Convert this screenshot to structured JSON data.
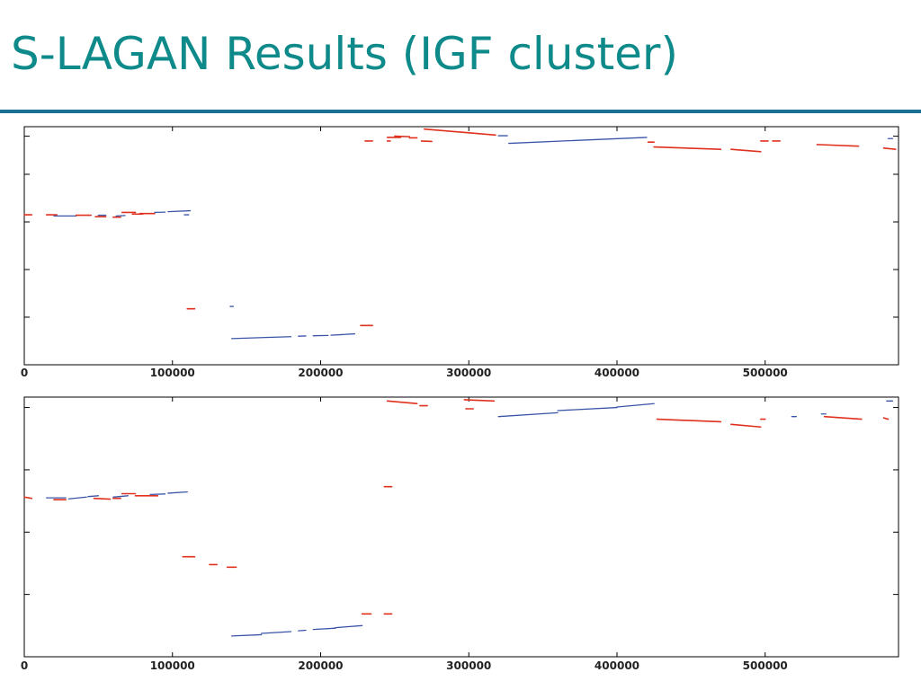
{
  "title": "S-LAGAN Results (IGF cluster)",
  "colors": {
    "title": "#0f8a8a",
    "rule": "#1b6f93",
    "forward": "#e0301e",
    "reverse": "#3a55a8"
  },
  "chart_data": [
    {
      "type": "scatter",
      "title": "",
      "xlabel": "",
      "ylabel": "",
      "xlim": [
        0,
        590000
      ],
      "ylim": [
        0,
        1
      ],
      "xticks": [
        0,
        100000,
        200000,
        300000,
        400000,
        500000
      ],
      "xtick_labels": [
        "0",
        "100000",
        "200000",
        "300000",
        "400000",
        "500000"
      ],
      "yticks": [
        0.2,
        0.4,
        0.6,
        0.8,
        0.96
      ],
      "grid": false,
      "segments": [
        {
          "c": "r",
          "x1": 0,
          "y1": 0.63,
          "x2": 5000,
          "y2": 0.63
        },
        {
          "c": "r",
          "x1": 15000,
          "y1": 0.63,
          "x2": 22000,
          "y2": 0.63
        },
        {
          "c": "b",
          "x1": 20000,
          "y1": 0.625,
          "x2": 35000,
          "y2": 0.625
        },
        {
          "c": "r",
          "x1": 35000,
          "y1": 0.628,
          "x2": 45000,
          "y2": 0.628
        },
        {
          "c": "b",
          "x1": 50000,
          "y1": 0.628,
          "x2": 55000,
          "y2": 0.628
        },
        {
          "c": "r",
          "x1": 48000,
          "y1": 0.622,
          "x2": 55000,
          "y2": 0.622
        },
        {
          "c": "r",
          "x1": 60000,
          "y1": 0.62,
          "x2": 65000,
          "y2": 0.62
        },
        {
          "c": "b",
          "x1": 62000,
          "y1": 0.625,
          "x2": 68000,
          "y2": 0.627
        },
        {
          "c": "r",
          "x1": 66000,
          "y1": 0.64,
          "x2": 75000,
          "y2": 0.64
        },
        {
          "c": "r",
          "x1": 73000,
          "y1": 0.633,
          "x2": 80000,
          "y2": 0.633
        },
        {
          "c": "r",
          "x1": 78000,
          "y1": 0.635,
          "x2": 88000,
          "y2": 0.635
        },
        {
          "c": "b",
          "x1": 88000,
          "y1": 0.64,
          "x2": 95000,
          "y2": 0.641
        },
        {
          "c": "b",
          "x1": 97000,
          "y1": 0.643,
          "x2": 112000,
          "y2": 0.647
        },
        {
          "c": "b",
          "x1": 108000,
          "y1": 0.63,
          "x2": 111000,
          "y2": 0.63
        },
        {
          "c": "r",
          "x1": 110000,
          "y1": 0.235,
          "x2": 115000,
          "y2": 0.235
        },
        {
          "c": "b",
          "x1": 139000,
          "y1": 0.245,
          "x2": 141000,
          "y2": 0.245
        },
        {
          "c": "b",
          "x1": 140000,
          "y1": 0.11,
          "x2": 165000,
          "y2": 0.115
        },
        {
          "c": "b",
          "x1": 165000,
          "y1": 0.115,
          "x2": 180000,
          "y2": 0.118
        },
        {
          "c": "b",
          "x1": 185000,
          "y1": 0.12,
          "x2": 190000,
          "y2": 0.121
        },
        {
          "c": "b",
          "x1": 195000,
          "y1": 0.122,
          "x2": 205000,
          "y2": 0.123
        },
        {
          "c": "b",
          "x1": 207000,
          "y1": 0.124,
          "x2": 223000,
          "y2": 0.13
        },
        {
          "c": "r",
          "x1": 227000,
          "y1": 0.165,
          "x2": 235000,
          "y2": 0.165
        },
        {
          "c": "r",
          "x1": 230000,
          "y1": 0.94,
          "x2": 235000,
          "y2": 0.94
        },
        {
          "c": "r",
          "x1": 245000,
          "y1": 0.94,
          "x2": 247000,
          "y2": 0.94
        },
        {
          "c": "r",
          "x1": 245000,
          "y1": 0.955,
          "x2": 254000,
          "y2": 0.955
        },
        {
          "c": "r",
          "x1": 250000,
          "y1": 0.96,
          "x2": 260000,
          "y2": 0.958
        },
        {
          "c": "r",
          "x1": 260000,
          "y1": 0.953,
          "x2": 265000,
          "y2": 0.953
        },
        {
          "c": "r",
          "x1": 268000,
          "y1": 0.94,
          "x2": 275000,
          "y2": 0.938
        },
        {
          "c": "r",
          "x1": 270000,
          "y1": 0.99,
          "x2": 318000,
          "y2": 0.965
        },
        {
          "c": "b",
          "x1": 320000,
          "y1": 0.962,
          "x2": 326000,
          "y2": 0.962
        },
        {
          "c": "b",
          "x1": 327000,
          "y1": 0.93,
          "x2": 420000,
          "y2": 0.955
        },
        {
          "c": "r",
          "x1": 421000,
          "y1": 0.935,
          "x2": 425000,
          "y2": 0.935
        },
        {
          "c": "r",
          "x1": 425000,
          "y1": 0.915,
          "x2": 470000,
          "y2": 0.905
        },
        {
          "c": "r",
          "x1": 477000,
          "y1": 0.905,
          "x2": 497000,
          "y2": 0.895
        },
        {
          "c": "r",
          "x1": 497000,
          "y1": 0.94,
          "x2": 502000,
          "y2": 0.94
        },
        {
          "c": "r",
          "x1": 505000,
          "y1": 0.94,
          "x2": 510000,
          "y2": 0.94
        },
        {
          "c": "r",
          "x1": 535000,
          "y1": 0.925,
          "x2": 563000,
          "y2": 0.918
        },
        {
          "c": "r",
          "x1": 580000,
          "y1": 0.91,
          "x2": 588000,
          "y2": 0.905
        },
        {
          "c": "b",
          "x1": 583000,
          "y1": 0.95,
          "x2": 586000,
          "y2": 0.95
        }
      ]
    },
    {
      "type": "scatter",
      "title": "",
      "xlabel": "",
      "ylabel": "",
      "xlim": [
        0,
        590000
      ],
      "ylim": [
        0,
        1
      ],
      "xticks": [
        0,
        100000,
        200000,
        300000,
        400000,
        500000
      ],
      "xtick_labels": [
        "0",
        "100000",
        "200000",
        "300000",
        "400000",
        "500000"
      ],
      "yticks": [
        0.24,
        0.48,
        0.72,
        0.96
      ],
      "grid": false,
      "segments": [
        {
          "c": "r",
          "x1": 0,
          "y1": 0.615,
          "x2": 5000,
          "y2": 0.61
        },
        {
          "c": "b",
          "x1": 15000,
          "y1": 0.612,
          "x2": 28000,
          "y2": 0.612
        },
        {
          "c": "r",
          "x1": 20000,
          "y1": 0.605,
          "x2": 28000,
          "y2": 0.605
        },
        {
          "c": "b",
          "x1": 30000,
          "y1": 0.608,
          "x2": 42000,
          "y2": 0.615
        },
        {
          "c": "b",
          "x1": 43000,
          "y1": 0.617,
          "x2": 50000,
          "y2": 0.62
        },
        {
          "c": "r",
          "x1": 47000,
          "y1": 0.61,
          "x2": 58000,
          "y2": 0.607
        },
        {
          "c": "r",
          "x1": 60000,
          "y1": 0.61,
          "x2": 65000,
          "y2": 0.61
        },
        {
          "c": "b",
          "x1": 60000,
          "y1": 0.615,
          "x2": 70000,
          "y2": 0.62
        },
        {
          "c": "r",
          "x1": 66000,
          "y1": 0.628,
          "x2": 75000,
          "y2": 0.628
        },
        {
          "c": "r",
          "x1": 75000,
          "y1": 0.62,
          "x2": 90000,
          "y2": 0.62
        },
        {
          "c": "b",
          "x1": 85000,
          "y1": 0.625,
          "x2": 95000,
          "y2": 0.627
        },
        {
          "c": "b",
          "x1": 97000,
          "y1": 0.63,
          "x2": 110000,
          "y2": 0.635
        },
        {
          "c": "r",
          "x1": 107000,
          "y1": 0.385,
          "x2": 115000,
          "y2": 0.385
        },
        {
          "c": "r",
          "x1": 125000,
          "y1": 0.355,
          "x2": 130000,
          "y2": 0.355
        },
        {
          "c": "r",
          "x1": 137000,
          "y1": 0.345,
          "x2": 143000,
          "y2": 0.345
        },
        {
          "c": "b",
          "x1": 140000,
          "y1": 0.08,
          "x2": 160000,
          "y2": 0.085
        },
        {
          "c": "b",
          "x1": 160000,
          "y1": 0.09,
          "x2": 180000,
          "y2": 0.097
        },
        {
          "c": "b",
          "x1": 185000,
          "y1": 0.1,
          "x2": 190000,
          "y2": 0.102
        },
        {
          "c": "b",
          "x1": 195000,
          "y1": 0.105,
          "x2": 210000,
          "y2": 0.11
        },
        {
          "c": "b",
          "x1": 210000,
          "y1": 0.112,
          "x2": 228000,
          "y2": 0.12
        },
        {
          "c": "r",
          "x1": 228000,
          "y1": 0.165,
          "x2": 234000,
          "y2": 0.165
        },
        {
          "c": "r",
          "x1": 243000,
          "y1": 0.165,
          "x2": 248000,
          "y2": 0.165
        },
        {
          "c": "r",
          "x1": 243000,
          "y1": 0.655,
          "x2": 248000,
          "y2": 0.655
        },
        {
          "c": "r",
          "x1": 245000,
          "y1": 0.985,
          "x2": 265000,
          "y2": 0.975
        },
        {
          "c": "r",
          "x1": 267000,
          "y1": 0.967,
          "x2": 272000,
          "y2": 0.967
        },
        {
          "c": "r",
          "x1": 297000,
          "y1": 0.99,
          "x2": 317000,
          "y2": 0.985
        },
        {
          "c": "r",
          "x1": 298000,
          "y1": 0.955,
          "x2": 303000,
          "y2": 0.955
        },
        {
          "c": "b",
          "x1": 320000,
          "y1": 0.925,
          "x2": 360000,
          "y2": 0.94
        },
        {
          "c": "b",
          "x1": 360000,
          "y1": 0.948,
          "x2": 400000,
          "y2": 0.96
        },
        {
          "c": "b",
          "x1": 400000,
          "y1": 0.962,
          "x2": 425000,
          "y2": 0.975
        },
        {
          "c": "r",
          "x1": 427000,
          "y1": 0.915,
          "x2": 470000,
          "y2": 0.905
        },
        {
          "c": "r",
          "x1": 477000,
          "y1": 0.895,
          "x2": 497000,
          "y2": 0.885
        },
        {
          "c": "r",
          "x1": 497000,
          "y1": 0.915,
          "x2": 500000,
          "y2": 0.915
        },
        {
          "c": "b",
          "x1": 518000,
          "y1": 0.925,
          "x2": 521000,
          "y2": 0.925
        },
        {
          "c": "b",
          "x1": 538000,
          "y1": 0.935,
          "x2": 541000,
          "y2": 0.935
        },
        {
          "c": "r",
          "x1": 540000,
          "y1": 0.925,
          "x2": 565000,
          "y2": 0.915
        },
        {
          "c": "r",
          "x1": 580000,
          "y1": 0.92,
          "x2": 583000,
          "y2": 0.915
        },
        {
          "c": "b",
          "x1": 582000,
          "y1": 0.985,
          "x2": 586000,
          "y2": 0.985
        }
      ]
    }
  ]
}
